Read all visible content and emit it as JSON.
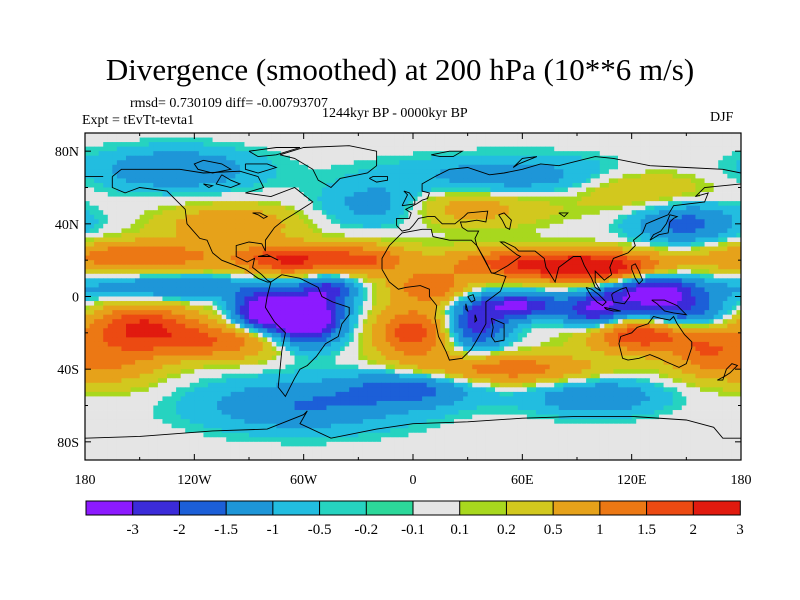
{
  "title": "Divergence (smoothed) at 200 hPa (10**6 m/s)",
  "stats": {
    "rmsd_line": "rmsd= 0.730109 diff= -0.00793707",
    "experiment": "Expt = tEvTt-tevta1",
    "period": "1244kyr BP - 0000kyr BP",
    "season": "DJF"
  },
  "chart_data": {
    "type": "heatmap",
    "title": "Divergence (smoothed) at 200 hPa (10**6 m/s)",
    "xlabel": "",
    "ylabel": "",
    "xlim": [
      -180,
      180
    ],
    "ylim": [
      -90,
      90
    ],
    "x_ticks": [
      {
        "value": -180,
        "label": "180"
      },
      {
        "value": -120,
        "label": "120W"
      },
      {
        "value": -60,
        "label": "60W"
      },
      {
        "value": 0,
        "label": "0"
      },
      {
        "value": 60,
        "label": "60E"
      },
      {
        "value": 120,
        "label": "120E"
      },
      {
        "value": 180,
        "label": "180"
      }
    ],
    "y_ticks": [
      {
        "value": 80,
        "label": "80N"
      },
      {
        "value": 40,
        "label": "40N"
      },
      {
        "value": 0,
        "label": "0"
      },
      {
        "value": -40,
        "label": "40S"
      },
      {
        "value": -80,
        "label": "80S"
      }
    ],
    "colorbar": {
      "levels": [
        "-3",
        "-2",
        "-1.5",
        "-1",
        "-0.5",
        "-0.2",
        "-0.1",
        "0.1",
        "0.2",
        "0.5",
        "1",
        "1.5",
        "2",
        "3"
      ],
      "colors": [
        "#8c1aff",
        "#3b2bd9",
        "#1c5fd8",
        "#1e96d8",
        "#22bde0",
        "#26d3c0",
        "#2cd89a",
        "#e5e5e5",
        "#a8d81e",
        "#d2c81e",
        "#e6a21a",
        "#ec7814",
        "#ec4a12",
        "#e11a0f"
      ]
    },
    "fields": [
      {
        "lon": -60,
        "lat": -12,
        "sx": 14,
        "sy": 10,
        "amp": -3.4
      },
      {
        "lon": -85,
        "lat": -8,
        "sx": 10,
        "sy": 7,
        "amp": -2.2
      },
      {
        "lon": -45,
        "lat": 5,
        "sx": 10,
        "sy": 6,
        "amp": -1.2
      },
      {
        "lon": -150,
        "lat": -15,
        "sx": 22,
        "sy": 8,
        "amp": 1.8
      },
      {
        "lon": -110,
        "lat": -25,
        "sx": 30,
        "sy": 7,
        "amp": 1.4
      },
      {
        "lon": -165,
        "lat": -35,
        "sx": 20,
        "sy": 10,
        "amp": 1.0
      },
      {
        "lon": -150,
        "lat": 22,
        "sx": 35,
        "sy": 6,
        "amp": 1.5
      },
      {
        "lon": -70,
        "lat": 20,
        "sx": 18,
        "sy": 6,
        "amp": 1.8
      },
      {
        "lon": -100,
        "lat": 40,
        "sx": 25,
        "sy": 7,
        "amp": 1.0
      },
      {
        "lon": -30,
        "lat": 20,
        "sx": 20,
        "sy": 6,
        "amp": 1.6
      },
      {
        "lon": 10,
        "lat": 5,
        "sx": 15,
        "sy": 6,
        "amp": 1.4
      },
      {
        "lon": 0,
        "lat": -20,
        "sx": 15,
        "sy": 10,
        "amp": 1.8
      },
      {
        "lon": 35,
        "lat": -15,
        "sx": 12,
        "sy": 10,
        "amp": -1.8
      },
      {
        "lon": 60,
        "lat": -5,
        "sx": 15,
        "sy": 5,
        "amp": -2.0
      },
      {
        "lon": 60,
        "lat": 18,
        "sx": 30,
        "sy": 6,
        "amp": 1.8
      },
      {
        "lon": 110,
        "lat": 15,
        "sx": 25,
        "sy": 6,
        "amp": 2.6
      },
      {
        "lon": 130,
        "lat": 5,
        "sx": 18,
        "sy": 8,
        "amp": -2.4
      },
      {
        "lon": 100,
        "lat": -8,
        "sx": 12,
        "sy": 7,
        "amp": -2.0
      },
      {
        "lon": 145,
        "lat": -10,
        "sx": 20,
        "sy": 8,
        "amp": -1.6
      },
      {
        "lon": 125,
        "lat": -20,
        "sx": 20,
        "sy": 7,
        "amp": 2.3
      },
      {
        "lon": 160,
        "lat": -30,
        "sx": 15,
        "sy": 10,
        "amp": 1.2
      },
      {
        "lon": 50,
        "lat": -40,
        "sx": 35,
        "sy": 6,
        "amp": 1.4
      },
      {
        "lon": 0,
        "lat": -50,
        "sx": 25,
        "sy": 7,
        "amp": -1.2
      },
      {
        "lon": 100,
        "lat": -55,
        "sx": 25,
        "sy": 7,
        "amp": -1.0
      },
      {
        "lon": -60,
        "lat": -60,
        "sx": 40,
        "sy": 10,
        "amp": -1.0
      },
      {
        "lon": -130,
        "lat": 70,
        "sx": 30,
        "sy": 8,
        "amp": -1.0
      },
      {
        "lon": 60,
        "lat": 65,
        "sx": 50,
        "sy": 8,
        "amp": -0.9
      },
      {
        "lon": 150,
        "lat": 40,
        "sx": 20,
        "sy": 8,
        "amp": -1.2
      },
      {
        "lon": -130,
        "lat": 5,
        "sx": 40,
        "sy": 5,
        "amp": -1.0
      },
      {
        "lon": -20,
        "lat": 50,
        "sx": 20,
        "sy": 8,
        "amp": -0.8
      },
      {
        "lon": 30,
        "lat": 50,
        "sx": 30,
        "sy": 8,
        "amp": 0.8
      },
      {
        "lon": 120,
        "lat": 60,
        "sx": 30,
        "sy": 8,
        "amp": 0.8
      }
    ]
  }
}
